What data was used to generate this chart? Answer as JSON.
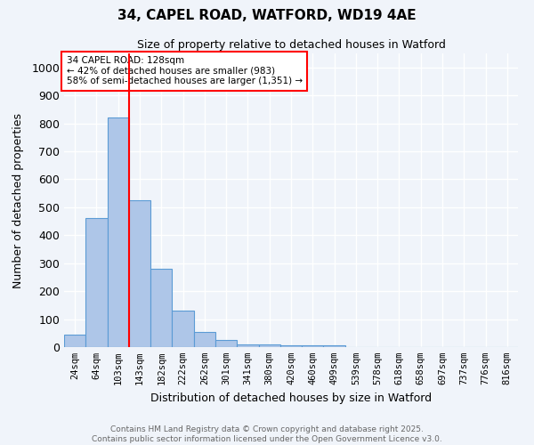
{
  "title_line1": "34, CAPEL ROAD, WATFORD, WD19 4AE",
  "title_line2": "Size of property relative to detached houses in Watford",
  "xlabel": "Distribution of detached houses by size in Watford",
  "ylabel": "Number of detached properties",
  "footer_line1": "Contains HM Land Registry data © Crown copyright and database right 2025.",
  "footer_line2": "Contains public sector information licensed under the Open Government Licence v3.0.",
  "annotation_line1": "34 CAPEL ROAD: 128sqm",
  "annotation_line2": "← 42% of detached houses are smaller (983)",
  "annotation_line3": "58% of semi-detached houses are larger (1,351) →",
  "categories": [
    "24sqm",
    "64sqm",
    "103sqm",
    "143sqm",
    "182sqm",
    "222sqm",
    "262sqm",
    "301sqm",
    "341sqm",
    "380sqm",
    "420sqm",
    "460sqm",
    "499sqm",
    "539sqm",
    "578sqm",
    "618sqm",
    "658sqm",
    "697sqm",
    "737sqm",
    "776sqm",
    "816sqm"
  ],
  "values": [
    45,
    460,
    820,
    525,
    280,
    130,
    55,
    25,
    10,
    10,
    5,
    5,
    5,
    0,
    0,
    0,
    0,
    0,
    0,
    0,
    0
  ],
  "bar_color": "#aec6e8",
  "bar_edge_color": "#5b9bd5",
  "vline_x": 2.5,
  "vline_color": "red",
  "ylim": [
    0,
    1050
  ],
  "yticks": [
    0,
    100,
    200,
    300,
    400,
    500,
    600,
    700,
    800,
    900,
    1000
  ],
  "background_color": "#f0f4fa",
  "grid_color": "#ffffff",
  "annotation_box_color": "#ffffff",
  "annotation_box_edge": "red"
}
